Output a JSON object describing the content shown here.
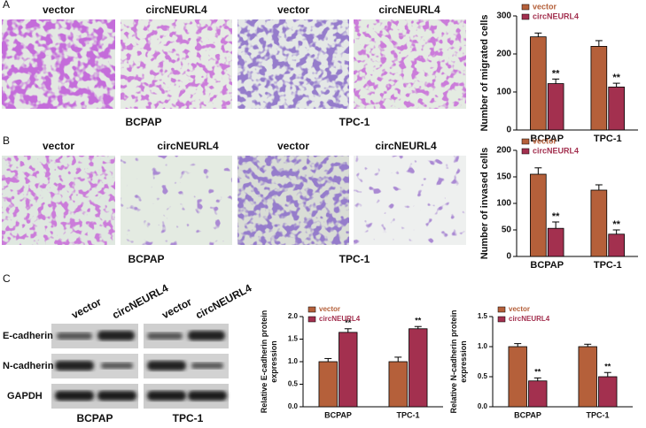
{
  "panel_labels": [
    "A",
    "B",
    "C"
  ],
  "panel_a": {
    "image_labels": [
      "vector",
      "circNEURL4",
      "vector",
      "circNEURL4"
    ],
    "group_labels": [
      "BCPAP",
      "TPC-1"
    ]
  },
  "panel_b": {
    "image_labels": [
      "vector",
      "circNEURL4",
      "vector",
      "circNEURL4"
    ],
    "group_labels": [
      "BCPAP",
      "TPC-1"
    ]
  },
  "panel_c": {
    "lane_labels": [
      "vector",
      "circNEURL4",
      "vector",
      "circNEURL4"
    ],
    "row_labels": [
      "E-cadherin",
      "N-cadherin",
      "GAPDH"
    ],
    "group_labels": [
      "BCPAP",
      "TPC-1"
    ]
  },
  "chart_data": [
    {
      "type": "bar",
      "ylabel": [
        "Number of migrated cells"
      ],
      "categories": [
        "BCPAP",
        "TPC-1"
      ],
      "series": [
        {
          "name": "vector",
          "color": "#b5603a",
          "values": [
            245,
            220
          ],
          "errors": [
            10,
            15
          ]
        },
        {
          "name": "circNEURL4",
          "color": "#a3304f",
          "values": [
            122,
            113
          ],
          "errors": [
            12,
            10
          ],
          "significance": [
            "**",
            "**"
          ]
        }
      ],
      "ylim": [
        0,
        300
      ],
      "yticks": [
        0,
        100,
        200,
        300
      ]
    },
    {
      "type": "bar",
      "ylabel": [
        "Number of invased cells"
      ],
      "categories": [
        "BCPAP",
        "TPC-1"
      ],
      "series": [
        {
          "name": "vector",
          "color": "#b5603a",
          "values": [
            155,
            125
          ],
          "errors": [
            12,
            10
          ]
        },
        {
          "name": "circNEURL4",
          "color": "#a3304f",
          "values": [
            53,
            42
          ],
          "errors": [
            12,
            8
          ],
          "significance": [
            "**",
            "**"
          ]
        }
      ],
      "ylim": [
        0,
        200
      ],
      "yticks": [
        0,
        50,
        100,
        150,
        200
      ]
    },
    {
      "type": "bar",
      "ylabel": [
        "Relative E-cadherin protein",
        "expression"
      ],
      "categories": [
        "BCPAP",
        "TPC-1"
      ],
      "series": [
        {
          "name": "vector",
          "color": "#b5603a",
          "values": [
            1.0,
            1.0
          ],
          "errors": [
            0.07,
            0.1
          ]
        },
        {
          "name": "circNEURL4",
          "color": "#a3304f",
          "values": [
            1.65,
            1.73
          ],
          "errors": [
            0.08,
            0.05
          ],
          "significance": [
            "**",
            "**"
          ]
        }
      ],
      "ylim": [
        0,
        2
      ],
      "yticks": [
        {
          "value": 0,
          "label": "0.0"
        },
        0.5,
        {
          "value": 1,
          "label": "1.0"
        },
        1.5,
        {
          "value": 2,
          "label": "2.0"
        }
      ]
    },
    {
      "type": "bar",
      "ylabel": [
        "Relative N-cadherin protein",
        "expression"
      ],
      "categories": [
        "BCPAP",
        "TPC-1"
      ],
      "series": [
        {
          "name": "vector",
          "color": "#b5603a",
          "values": [
            1.0,
            1.0
          ],
          "errors": [
            0.05,
            0.04
          ]
        },
        {
          "name": "circNEURL4",
          "color": "#a3304f",
          "values": [
            0.43,
            0.5
          ],
          "errors": [
            0.05,
            0.07
          ],
          "significance": [
            "**",
            "**"
          ]
        }
      ],
      "ylim": [
        0,
        1.5
      ],
      "yticks": [
        {
          "value": 0,
          "label": "0.0"
        },
        0.5,
        {
          "value": 1,
          "label": "1.0"
        },
        1.5
      ]
    }
  ]
}
